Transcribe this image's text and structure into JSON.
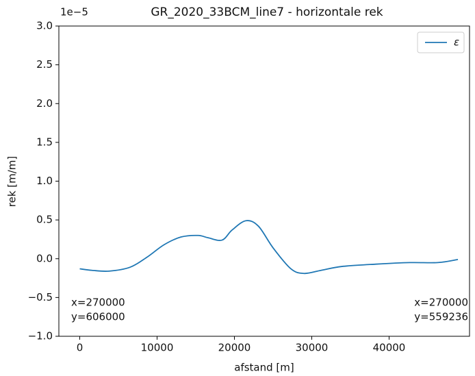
{
  "chart_data": {
    "type": "line",
    "title": "GR_2020_33BCM_line7 - horizontale rek",
    "x_label": "afstand [m]",
    "y_label": "rek [m/m]",
    "y_offset_label": "1e−5",
    "x": [
      0,
      1600,
      3800,
      6500,
      8700,
      10900,
      13100,
      15300,
      16600,
      18400,
      19700,
      21500,
      23100,
      25000,
      27300,
      29000,
      31200,
      33900,
      38300,
      42700,
      46300,
      48900
    ],
    "series": [
      {
        "name": "ε",
        "color": "#1f77b4",
        "values": [
          -0.13,
          -0.15,
          -0.16,
          -0.11,
          0.02,
          0.18,
          0.28,
          0.3,
          0.27,
          0.24,
          0.37,
          0.49,
          0.42,
          0.14,
          -0.13,
          -0.19,
          -0.15,
          -0.1,
          -0.07,
          -0.05,
          -0.05,
          -0.01
        ]
      }
    ],
    "xlim": [
      -2700,
      50400
    ],
    "ylim": [
      -1.0,
      3.0
    ],
    "xticks": [
      0,
      10000,
      20000,
      30000,
      40000
    ],
    "yticks": [
      {
        "value": -1.0,
        "label": "−1.0"
      },
      {
        "value": -0.5,
        "label": "−0.5"
      },
      {
        "value": 0,
        "label": "0.0"
      },
      0.5,
      {
        "value": 1.0,
        "label": "1.0"
      },
      1.5,
      {
        "value": 2.0,
        "label": "2.0"
      },
      2.5,
      {
        "value": 3.0,
        "label": "3.0"
      }
    ],
    "legend": "upper right",
    "grid": false,
    "annotations": [
      [
        "x=270000",
        "y=606000"
      ],
      [
        "x=270000",
        "y=559236"
      ]
    ]
  }
}
